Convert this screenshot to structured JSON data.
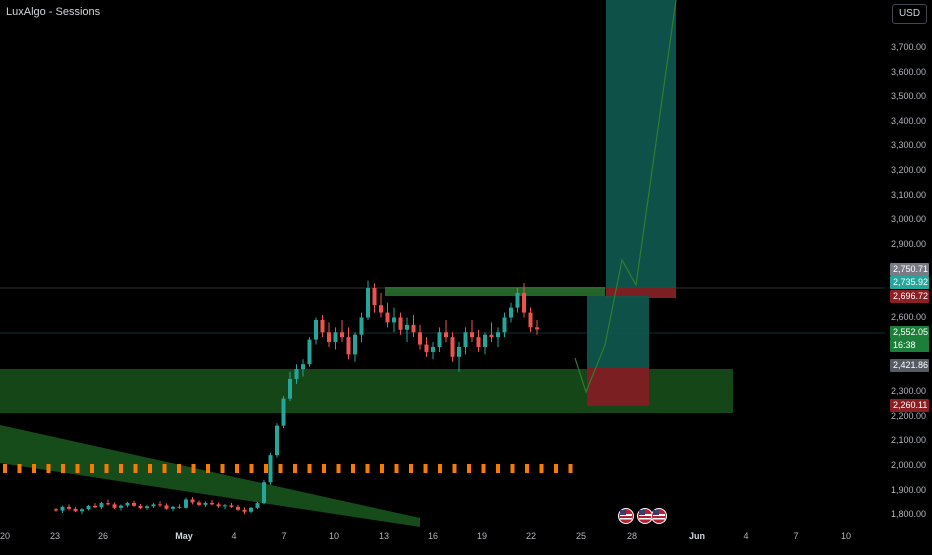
{
  "indicator": {
    "label": "LuxAlgo - Sessions"
  },
  "currency_label": "USD",
  "colors": {
    "bull": "#26a69a",
    "bear": "#ef5350",
    "zone_green": "#1b5e20",
    "target_teal": "#0e5a50",
    "stop_red": "#7b1f22",
    "session_orange": "#f57c00"
  },
  "price_axis": {
    "ticks": [
      "3,700.00",
      "3,600.00",
      "3,500.00",
      "3,400.00",
      "3,300.00",
      "3,200.00",
      "3,100.00",
      "3,000.00",
      "2,900.00",
      "2,600.00",
      "2,300.00",
      "2,200.00",
      "2,100.00",
      "2,000.00",
      "1,900.00",
      "1,800.00"
    ],
    "tick_values": [
      3700,
      3600,
      3500,
      3400,
      3300,
      3200,
      3100,
      3000,
      2900,
      2600,
      2300,
      2200,
      2100,
      2000,
      1900,
      1800
    ]
  },
  "badges": [
    {
      "text": "2,750.71",
      "value": 2750.71,
      "color": "#787b86"
    },
    {
      "text": "2,735.92",
      "value": 2735.92,
      "color": "#26a69a"
    },
    {
      "text": "2,696.72",
      "value": 2696.72,
      "color": "#8b1f24"
    },
    {
      "text": "2,552.05",
      "value": 2552.05,
      "color": "#1b7f3a"
    },
    {
      "text": "16:38",
      "value": 2510,
      "color": "#1b7f3a"
    },
    {
      "text": "2,421.86",
      "value": 2421.86,
      "color": "#555a64"
    },
    {
      "text": "2,260.11",
      "value": 2260.11,
      "color": "#8b1f24"
    }
  ],
  "time_axis": {
    "labels": [
      "20",
      "23",
      "26",
      "May",
      "4",
      "7",
      "10",
      "13",
      "16",
      "19",
      "22",
      "25",
      "28",
      "Jun",
      "4",
      "7",
      "10"
    ],
    "bold": [
      "May",
      "Jun"
    ]
  },
  "chart_data": {
    "type": "candlestick",
    "symbol_context": "XAU/USD daily-like",
    "ylim": [
      1760,
      3800
    ],
    "candles": [
      [
        1820,
        1825,
        1810,
        1815
      ],
      [
        1815,
        1835,
        1805,
        1830
      ],
      [
        1830,
        1840,
        1815,
        1822
      ],
      [
        1822,
        1830,
        1808,
        1812
      ],
      [
        1812,
        1825,
        1800,
        1820
      ],
      [
        1820,
        1838,
        1815,
        1834
      ],
      [
        1834,
        1845,
        1825,
        1828
      ],
      [
        1828,
        1850,
        1820,
        1845
      ],
      [
        1845,
        1860,
        1835,
        1840
      ],
      [
        1840,
        1848,
        1820,
        1826
      ],
      [
        1826,
        1840,
        1815,
        1835
      ],
      [
        1835,
        1850,
        1828,
        1846
      ],
      [
        1846,
        1855,
        1830,
        1834
      ],
      [
        1834,
        1842,
        1820,
        1825
      ],
      [
        1825,
        1838,
        1818,
        1832
      ],
      [
        1832,
        1846,
        1826,
        1840
      ],
      [
        1840,
        1852,
        1830,
        1836
      ],
      [
        1836,
        1844,
        1818,
        1822
      ],
      [
        1822,
        1834,
        1812,
        1830
      ],
      [
        1830,
        1840,
        1822,
        1826
      ],
      [
        1826,
        1868,
        1822,
        1860
      ],
      [
        1860,
        1870,
        1840,
        1848
      ],
      [
        1848,
        1856,
        1832,
        1838
      ],
      [
        1838,
        1852,
        1830,
        1846
      ],
      [
        1846,
        1858,
        1836,
        1840
      ],
      [
        1840,
        1848,
        1826,
        1832
      ],
      [
        1832,
        1842,
        1820,
        1836
      ],
      [
        1836,
        1846,
        1826,
        1830
      ],
      [
        1830,
        1838,
        1812,
        1818
      ],
      [
        1818,
        1828,
        1800,
        1810
      ],
      [
        1810,
        1830,
        1805,
        1826
      ],
      [
        1826,
        1850,
        1820,
        1845
      ],
      [
        1845,
        1940,
        1840,
        1930
      ],
      [
        1930,
        2050,
        1920,
        2040
      ],
      [
        2040,
        2170,
        2030,
        2160
      ],
      [
        2160,
        2280,
        2150,
        2270
      ],
      [
        2270,
        2380,
        2260,
        2350
      ],
      [
        2350,
        2410,
        2330,
        2390
      ],
      [
        2390,
        2430,
        2360,
        2410
      ],
      [
        2410,
        2520,
        2400,
        2510
      ],
      [
        2510,
        2600,
        2490,
        2590
      ],
      [
        2590,
        2610,
        2520,
        2540
      ],
      [
        2540,
        2580,
        2480,
        2500
      ],
      [
        2500,
        2560,
        2470,
        2540
      ],
      [
        2540,
        2590,
        2500,
        2520
      ],
      [
        2520,
        2560,
        2430,
        2450
      ],
      [
        2450,
        2540,
        2420,
        2530
      ],
      [
        2530,
        2620,
        2500,
        2600
      ],
      [
        2600,
        2750,
        2590,
        2720
      ],
      [
        2720,
        2740,
        2620,
        2650
      ],
      [
        2650,
        2700,
        2600,
        2620
      ],
      [
        2620,
        2660,
        2560,
        2580
      ],
      [
        2580,
        2640,
        2540,
        2600
      ],
      [
        2600,
        2620,
        2530,
        2550
      ],
      [
        2550,
        2600,
        2500,
        2570
      ],
      [
        2570,
        2610,
        2520,
        2540
      ],
      [
        2540,
        2570,
        2470,
        2490
      ],
      [
        2490,
        2520,
        2440,
        2460
      ],
      [
        2460,
        2500,
        2430,
        2480
      ],
      [
        2480,
        2560,
        2460,
        2540
      ],
      [
        2540,
        2590,
        2500,
        2520
      ],
      [
        2520,
        2540,
        2420,
        2440
      ],
      [
        2440,
        2500,
        2380,
        2480
      ],
      [
        2480,
        2560,
        2450,
        2540
      ],
      [
        2540,
        2590,
        2500,
        2520
      ],
      [
        2520,
        2550,
        2460,
        2480
      ],
      [
        2480,
        2540,
        2450,
        2530
      ],
      [
        2530,
        2580,
        2500,
        2520
      ],
      [
        2520,
        2560,
        2480,
        2540
      ],
      [
        2540,
        2620,
        2520,
        2600
      ],
      [
        2600,
        2660,
        2580,
        2640
      ],
      [
        2640,
        2720,
        2620,
        2700
      ],
      [
        2700,
        2740,
        2600,
        2620
      ],
      [
        2620,
        2640,
        2540,
        2560
      ],
      [
        2560,
        2590,
        2530,
        2552
      ]
    ]
  }
}
